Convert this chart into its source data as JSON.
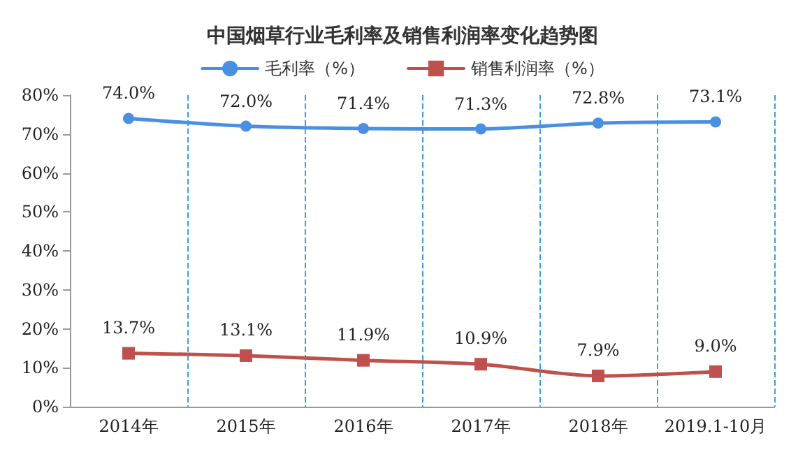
{
  "chart_data": {
    "type": "line",
    "title": "中国烟草行业毛利率及销售利润率变化趋势图",
    "categories": [
      "2014年",
      "2015年",
      "2016年",
      "2017年",
      "2018年",
      "2019.1-10月"
    ],
    "series": [
      {
        "name": "毛利率（%）",
        "color": "#4a90e2",
        "values": [
          74.0,
          72.0,
          71.4,
          71.3,
          72.8,
          73.1
        ],
        "marker": "circle",
        "value_labels": [
          "74.0%",
          "72.0%",
          "71.4%",
          "71.3%",
          "72.8%",
          "73.1%"
        ]
      },
      {
        "name": "销售利润率（%）",
        "color": "#c0504d",
        "values": [
          13.7,
          13.1,
          11.9,
          10.9,
          7.9,
          9.0
        ],
        "marker": "square",
        "value_labels": [
          "13.7%",
          "13.1%",
          "11.9%",
          "10.9%",
          "7.9%",
          "9.0%"
        ]
      }
    ],
    "ylim": [
      0,
      80
    ],
    "yticks": [
      {
        "value": 0,
        "label": "0%"
      },
      {
        "value": 10,
        "label": "10%"
      },
      {
        "value": 20,
        "label": "20%"
      },
      {
        "value": 30,
        "label": "30%"
      },
      {
        "value": 40,
        "label": "40%"
      },
      {
        "value": 50,
        "label": "50%"
      },
      {
        "value": 60,
        "label": "60%"
      },
      {
        "value": 70,
        "label": "70%"
      },
      {
        "value": 80,
        "label": "80%"
      }
    ],
    "grid": "x",
    "legend": "top",
    "line_style": "solid"
  }
}
